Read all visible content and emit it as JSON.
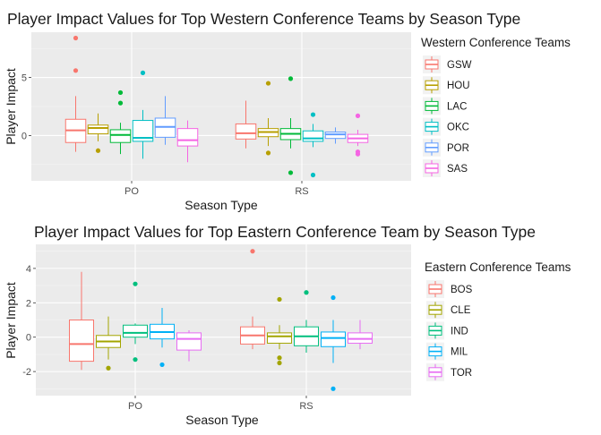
{
  "chart_data": [
    {
      "type": "boxplot",
      "title": "Player Impact Values for Top Western Conference Teams by Season Type",
      "xlabel": "Season Type",
      "ylabel": "Player Impact",
      "categories": [
        "PO",
        "RS"
      ],
      "y_ticks": [
        0,
        5
      ],
      "ylim": [
        -3.9,
        8.9
      ],
      "legend_title": "Western Conference Teams",
      "legend_position": "right",
      "series": [
        {
          "name": "GSW",
          "color": "#F8766D",
          "boxes": [
            {
              "category": "PO",
              "whisker_low": -1.4,
              "q1": -0.6,
              "median": 0.45,
              "q3": 1.4,
              "whisker_high": 3.4,
              "outliers": [
                5.6,
                8.4
              ]
            },
            {
              "category": "RS",
              "whisker_low": -1.1,
              "q1": -0.3,
              "median": 0.2,
              "q3": 1.0,
              "whisker_high": 3.0,
              "outliers": []
            }
          ]
        },
        {
          "name": "HOU",
          "color": "#B79F00",
          "boxes": [
            {
              "category": "PO",
              "whisker_low": -0.5,
              "q1": 0.15,
              "median": 0.65,
              "q3": 0.9,
              "whisker_high": 1.9,
              "outliers": [
                -1.3
              ]
            },
            {
              "category": "RS",
              "whisker_low": -0.9,
              "q1": -0.1,
              "median": 0.3,
              "q3": 0.6,
              "whisker_high": 1.5,
              "outliers": [
                4.5,
                -1.5
              ]
            }
          ]
        },
        {
          "name": "LAC",
          "color": "#00BA38",
          "boxes": [
            {
              "category": "PO",
              "whisker_low": -1.6,
              "q1": -0.6,
              "median": 0.05,
              "q3": 0.5,
              "whisker_high": 1.1,
              "outliers": [
                3.7,
                2.8
              ]
            },
            {
              "category": "RS",
              "whisker_low": -1.1,
              "q1": -0.35,
              "median": 0.15,
              "q3": 0.6,
              "whisker_high": 1.5,
              "outliers": [
                4.9,
                -3.2
              ]
            }
          ]
        },
        {
          "name": "OKC",
          "color": "#00BFC4",
          "boxes": [
            {
              "category": "PO",
              "whisker_low": -2.0,
              "q1": -0.5,
              "median": -0.2,
              "q3": 1.3,
              "whisker_high": 2.2,
              "outliers": [
                5.4
              ]
            },
            {
              "category": "RS",
              "whisker_low": -1.0,
              "q1": -0.5,
              "median": -0.25,
              "q3": 0.4,
              "whisker_high": 1.0,
              "outliers": [
                1.8,
                -3.4
              ]
            }
          ]
        },
        {
          "name": "POR",
          "color": "#619CFF",
          "boxes": [
            {
              "category": "PO",
              "whisker_low": -0.8,
              "q1": -0.15,
              "median": 0.75,
              "q3": 1.5,
              "whisker_high": 3.4,
              "outliers": []
            },
            {
              "category": "RS",
              "whisker_low": -0.7,
              "q1": -0.25,
              "median": 0.1,
              "q3": 0.3,
              "whisker_high": 0.7,
              "outliers": []
            }
          ]
        },
        {
          "name": "SAS",
          "color": "#F564E3",
          "boxes": [
            {
              "category": "PO",
              "whisker_low": -2.3,
              "q1": -0.9,
              "median": -0.4,
              "q3": 0.6,
              "whisker_high": 1.3,
              "outliers": []
            },
            {
              "category": "RS",
              "whisker_low": -0.9,
              "q1": -0.6,
              "median": -0.25,
              "q3": 0.1,
              "whisker_high": 0.5,
              "outliers": [
                1.7,
                -1.4,
                -1.6
              ]
            }
          ]
        }
      ]
    },
    {
      "type": "boxplot",
      "title": "Player Impact Values for Top Eastern Conference Team by Season Type",
      "xlabel": "Season Type",
      "ylabel": "Player Impact",
      "categories": [
        "PO",
        "RS"
      ],
      "y_ticks": [
        -2,
        0,
        2,
        4
      ],
      "ylim": [
        -3.4,
        5.4
      ],
      "legend_title": "Eastern Conference Teams",
      "legend_position": "right",
      "series": [
        {
          "name": "BOS",
          "color": "#F8766D",
          "boxes": [
            {
              "category": "PO",
              "whisker_low": -1.9,
              "q1": -1.4,
              "median": -0.4,
              "q3": 1.0,
              "whisker_high": 3.8,
              "outliers": []
            },
            {
              "category": "RS",
              "whisker_low": -0.7,
              "q1": -0.4,
              "median": 0.1,
              "q3": 0.6,
              "whisker_high": 1.2,
              "outliers": [
                5.0
              ]
            }
          ]
        },
        {
          "name": "CLE",
          "color": "#A3A500",
          "boxes": [
            {
              "category": "PO",
              "whisker_low": -1.3,
              "q1": -0.6,
              "median": -0.25,
              "q3": 0.1,
              "whisker_high": 1.2,
              "outliers": [
                -1.8
              ]
            },
            {
              "category": "RS",
              "whisker_low": -0.7,
              "q1": -0.35,
              "median": 0.05,
              "q3": 0.25,
              "whisker_high": 0.7,
              "outliers": [
                2.2,
                -1.2,
                -1.5
              ]
            }
          ]
        },
        {
          "name": "IND",
          "color": "#00BF7D",
          "boxes": [
            {
              "category": "PO",
              "whisker_low": -0.4,
              "q1": 0.0,
              "median": 0.25,
              "q3": 0.7,
              "whisker_high": 0.8,
              "outliers": [
                3.1,
                -1.3
              ]
            },
            {
              "category": "RS",
              "whisker_low": -0.9,
              "q1": -0.5,
              "median": 0.05,
              "q3": 0.6,
              "whisker_high": 1.0,
              "outliers": [
                2.6
              ]
            }
          ]
        },
        {
          "name": "MIL",
          "color": "#00B0F6",
          "boxes": [
            {
              "category": "PO",
              "whisker_low": -0.6,
              "q1": -0.1,
              "median": 0.3,
              "q3": 0.75,
              "whisker_high": 1.7,
              "outliers": [
                -1.6
              ]
            },
            {
              "category": "RS",
              "whisker_low": -1.5,
              "q1": -0.55,
              "median": -0.05,
              "q3": 0.3,
              "whisker_high": 1.0,
              "outliers": [
                2.3,
                -3.0
              ]
            }
          ]
        },
        {
          "name": "TOR",
          "color": "#E76BF3",
          "boxes": [
            {
              "category": "PO",
              "whisker_low": -1.4,
              "q1": -0.75,
              "median": -0.1,
              "q3": 0.25,
              "whisker_high": 0.4,
              "outliers": []
            },
            {
              "category": "RS",
              "whisker_low": -0.7,
              "q1": -0.35,
              "median": -0.1,
              "q3": 0.25,
              "whisker_high": 1.0,
              "outliers": []
            }
          ]
        }
      ]
    }
  ]
}
